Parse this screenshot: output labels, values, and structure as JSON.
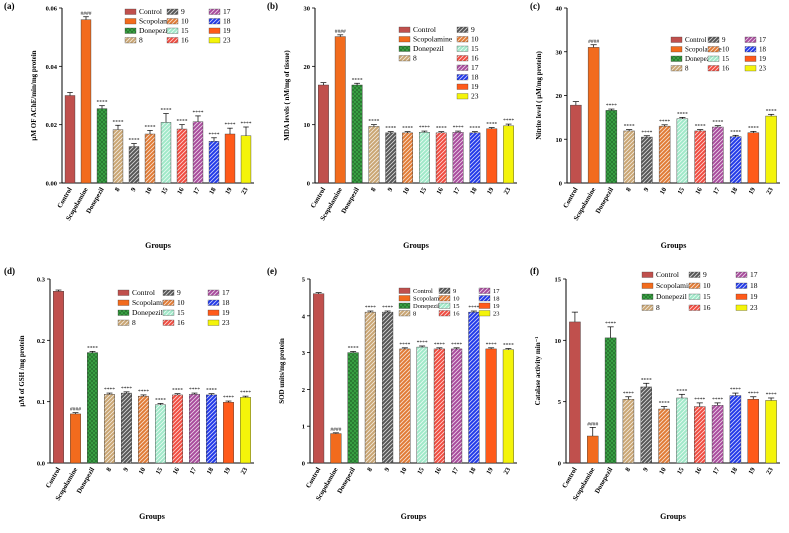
{
  "chart_data": [
    {
      "type": "bar",
      "panel_label": "(a)",
      "ylabel": "μM OF AChE/min/mg protein",
      "xlabel": "Groups",
      "ylim": [
        0,
        0.06
      ],
      "yticks": [
        "0.00",
        "0.02",
        "0.04",
        "0.06"
      ],
      "categories": [
        "Control",
        "Scopolamine",
        "Donepezil",
        "8",
        "9",
        "10",
        "15",
        "16",
        "17",
        "18",
        "19",
        "23"
      ],
      "values": [
        0.03,
        0.056,
        0.0255,
        0.0183,
        0.0125,
        0.0168,
        0.0208,
        0.0185,
        0.021,
        0.0143,
        0.0168,
        0.0162
      ],
      "errors": [
        0.001,
        0.001,
        0.001,
        0.0015,
        0.001,
        0.0012,
        0.003,
        0.0015,
        0.002,
        0.0012,
        0.002,
        0.003
      ],
      "annotations": [
        "",
        "####",
        "****",
        "****",
        "****",
        "****",
        "****",
        "****",
        "****",
        "****",
        "****",
        "****"
      ],
      "legend": [
        "Control",
        "Scopolamine",
        "Donepezil",
        "8",
        "9",
        "10",
        "15",
        "16",
        "17",
        "18",
        "19",
        "23"
      ]
    },
    {
      "type": "bar",
      "panel_label": "(b)",
      "ylabel": "MDA levels ( nM/mg of tissue)",
      "xlabel": "Groups",
      "ylim": [
        0,
        30
      ],
      "yticks": [
        "0",
        "10",
        "20",
        "30"
      ],
      "categories": [
        "Control",
        "Scopolamine",
        "Donepezil",
        "8",
        "9",
        "10",
        "15",
        "16",
        "17",
        "18",
        "19",
        "23"
      ],
      "values": [
        16.8,
        25.1,
        16.8,
        9.7,
        8.6,
        8.6,
        8.7,
        8.6,
        8.7,
        8.6,
        9.3,
        9.8
      ],
      "errors": [
        0.4,
        0.3,
        0.3,
        0.3,
        0.2,
        0.2,
        0.2,
        0.2,
        0.2,
        0.2,
        0.2,
        0.3
      ],
      "annotations": [
        "",
        "####",
        "****",
        "****",
        "****",
        "****",
        "****",
        "****",
        "****",
        "****",
        "****",
        "****"
      ],
      "legend": [
        "Control",
        "Scopolamine",
        "Donepezil",
        "8",
        "9",
        "10",
        "15",
        "16",
        "17",
        "18",
        "19",
        "23"
      ]
    },
    {
      "type": "bar",
      "panel_label": "(c)",
      "ylabel": "Nitrite level ( μM/mg protein)",
      "xlabel": "Groups",
      "ylim": [
        0,
        40
      ],
      "yticks": [
        "0",
        "10",
        "20",
        "30",
        "40"
      ],
      "categories": [
        "Control",
        "Scopolamine",
        "Donepezil",
        "8",
        "9",
        "10",
        "15",
        "16",
        "17",
        "18",
        "19",
        "23"
      ],
      "values": [
        17.8,
        31.0,
        16.6,
        11.9,
        10.5,
        13.0,
        14.7,
        11.9,
        12.8,
        10.6,
        11.5,
        15.3
      ],
      "errors": [
        0.8,
        0.6,
        0.3,
        0.3,
        0.3,
        0.3,
        0.3,
        0.3,
        0.3,
        0.3,
        0.3,
        0.4
      ],
      "annotations": [
        "",
        "####",
        "****",
        "****",
        "****",
        "****",
        "****",
        "****",
        "****",
        "****",
        "****",
        "****"
      ],
      "legend": [
        "Control",
        "Scopolamine",
        "Donepezil",
        "8",
        "9",
        "10",
        "15",
        "16",
        "17",
        "18",
        "19",
        "23"
      ]
    },
    {
      "type": "bar",
      "panel_label": "(d)",
      "ylabel": "μM of GSH /mg protein",
      "xlabel": "Groups",
      "ylim": [
        0,
        0.3
      ],
      "yticks": [
        "0.0",
        "0.1",
        "0.2",
        "0.3"
      ],
      "categories": [
        "Control",
        "Scopolamine",
        "Donepezil",
        "8",
        "9",
        "10",
        "15",
        "16",
        "17",
        "18",
        "19",
        "23"
      ],
      "values": [
        0.28,
        0.08,
        0.18,
        0.112,
        0.114,
        0.109,
        0.095,
        0.111,
        0.112,
        0.111,
        0.099,
        0.107
      ],
      "errors": [
        0.002,
        0.002,
        0.002,
        0.002,
        0.002,
        0.002,
        0.002,
        0.002,
        0.002,
        0.002,
        0.002,
        0.002
      ],
      "annotations": [
        "",
        "####",
        "****",
        "****",
        "****",
        "****",
        "****",
        "****",
        "****",
        "****",
        "****",
        "****"
      ],
      "legend": [
        "Control",
        "Scopolamine",
        "Donepezil",
        "8",
        "9",
        "10",
        "15",
        "16",
        "17",
        "18",
        "19",
        "23"
      ]
    },
    {
      "type": "bar",
      "panel_label": "(e)",
      "ylabel": "SOD units/mg protein",
      "xlabel": "Groups",
      "ylim": [
        0,
        5
      ],
      "yticks": [
        "0",
        "1",
        "2",
        "3",
        "4",
        "5"
      ],
      "categories": [
        "Control",
        "Scopolamine",
        "Donepezil",
        "8",
        "9",
        "10",
        "15",
        "16",
        "17",
        "18",
        "19",
        "23"
      ],
      "values": [
        4.6,
        0.8,
        3.0,
        4.1,
        4.1,
        3.1,
        3.15,
        3.1,
        3.1,
        4.1,
        3.1,
        3.08
      ],
      "errors": [
        0.03,
        0.02,
        0.03,
        0.03,
        0.03,
        0.03,
        0.03,
        0.03,
        0.03,
        0.03,
        0.03,
        0.03
      ],
      "annotations": [
        "",
        "####",
        "****",
        "****",
        "****",
        "****",
        "****",
        "****",
        "****",
        "****",
        "****",
        "****"
      ],
      "legend": [
        "Control",
        "Scopolamine",
        "Donepezil",
        "8",
        "9",
        "10",
        "15",
        "16",
        "17",
        "18",
        "19",
        "23"
      ]
    },
    {
      "type": "bar",
      "panel_label": "(f)",
      "ylabel": "Catalase activity min⁻¹",
      "xlabel": "Groups",
      "ylim": [
        0,
        15
      ],
      "yticks": [
        "0",
        "5",
        "10",
        "15"
      ],
      "categories": [
        "Control",
        "Scopolamine",
        "Donepezil",
        "8",
        "9",
        "10",
        "15",
        "16",
        "17",
        "18",
        "19",
        "23"
      ],
      "values": [
        11.5,
        2.2,
        10.2,
        5.2,
        6.2,
        4.4,
        5.3,
        4.6,
        4.7,
        5.5,
        5.2,
        5.1
      ],
      "errors": [
        0.8,
        0.7,
        0.9,
        0.2,
        0.3,
        0.2,
        0.3,
        0.3,
        0.2,
        0.2,
        0.2,
        0.2
      ],
      "annotations": [
        "",
        "####",
        "****",
        "****",
        "****",
        "****",
        "****",
        "****",
        "****",
        "****",
        "****",
        "****"
      ],
      "legend": [
        "Control",
        "Scopolamine",
        "Donepezil",
        "8",
        "9",
        "10",
        "15",
        "16",
        "17",
        "18",
        "19",
        "23"
      ]
    }
  ],
  "colors": [
    "#c0504d",
    "#f26b1d",
    "#3aa645",
    "#c9a572",
    "#555555",
    "#e07a34",
    "#9fe8c8",
    "#f04a3e",
    "#a84a9c",
    "#2038e8",
    "#ff5a1a",
    "#f4f40a"
  ],
  "patterns": [
    "solid",
    "solid",
    "crosshatch",
    "hatch",
    "hatch",
    "hatch",
    "hatch",
    "hatch",
    "hatch",
    "hatch",
    "solid",
    "solid"
  ]
}
